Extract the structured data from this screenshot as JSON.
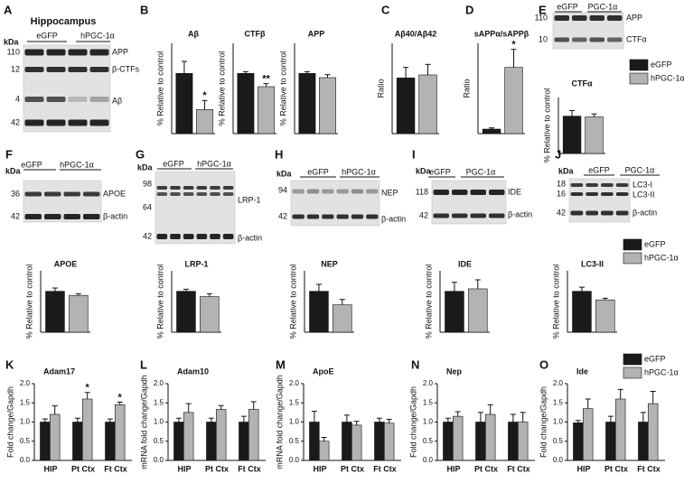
{
  "blots": [
    {
      "panel": "A",
      "title": "Hippocampus",
      "unit": "kDa",
      "lanes": [
        "eGFP",
        "hPGC-1α"
      ],
      "markers": [
        "110",
        "12",
        "4",
        "42"
      ],
      "labels": [
        "APP",
        "β-CTFs",
        "Aβ"
      ]
    },
    {
      "panel": "E",
      "lanes": [
        "eGFP",
        "PGC-1α"
      ],
      "markers": [
        "110",
        "10"
      ],
      "labels": [
        "APP",
        "CTFα"
      ]
    },
    {
      "panel": "F",
      "unit": "kDa",
      "lanes": [
        "eGFP",
        "hPGC-1α"
      ],
      "markers": [
        "36",
        "42"
      ],
      "labels": [
        "APOE",
        "β-actin"
      ]
    },
    {
      "panel": "G",
      "unit": "kDa",
      "lanes": [
        "eGFP",
        "hPGC-1α"
      ],
      "markers": [
        "98",
        "64",
        "42"
      ],
      "labels": [
        "LRP-1",
        "β-actin"
      ]
    },
    {
      "panel": "H",
      "unit": "kDa",
      "lanes": [
        "eGFP",
        "hPGC-1α"
      ],
      "markers": [
        "94",
        "42"
      ],
      "labels": [
        "NEP",
        "β-actin"
      ]
    },
    {
      "panel": "I",
      "unit": "kDa",
      "lanes": [
        "eGFP",
        "PGC-1α"
      ],
      "markers": [
        "118",
        "42"
      ],
      "labels": [
        "IDE",
        "β-actin"
      ]
    },
    {
      "panel": "J",
      "unit": "kDa",
      "lanes": [
        "eGFP",
        "PGC-1α"
      ],
      "markers": [
        "18",
        "16",
        "42"
      ],
      "labels": [
        "LC3-I",
        "LC3-II",
        "β-actin"
      ]
    }
  ],
  "chart_data": [
    {
      "type": "bar",
      "panel": "B",
      "title": "Aβ",
      "y_label": "% Relative to control",
      "ylim": [
        0,
        150
      ],
      "legend": false,
      "series": [
        {
          "name": "eGFP",
          "color": "#1a1a1a",
          "values": [
            100
          ],
          "errors": [
            20
          ]
        },
        {
          "name": "hPGC-1α",
          "color": "#b3b3b3",
          "values": [
            40
          ],
          "errors": [
            15
          ],
          "significance": [
            "*"
          ]
        }
      ]
    },
    {
      "type": "bar",
      "title": "CTFβ",
      "y_label": "% Relative to control",
      "ylim": [
        0,
        150
      ],
      "legend": false,
      "series": [
        {
          "name": "eGFP",
          "color": "#1a1a1a",
          "values": [
            100
          ],
          "errors": [
            3
          ]
        },
        {
          "name": "hPGC-1α",
          "color": "#b3b3b3",
          "values": [
            78
          ],
          "errors": [
            5
          ],
          "significance": [
            "**"
          ]
        }
      ]
    },
    {
      "type": "bar",
      "title": "APP",
      "y_label": "% Relative to control",
      "ylim": [
        0,
        150
      ],
      "legend": false,
      "series": [
        {
          "name": "eGFP",
          "color": "#1a1a1a",
          "values": [
            100
          ],
          "errors": [
            3
          ]
        },
        {
          "name": "hPGC-1α",
          "color": "#b3b3b3",
          "values": [
            93
          ],
          "errors": [
            5
          ]
        }
      ]
    },
    {
      "type": "bar",
      "panel": "C",
      "title": "Aβ40/Aβ42",
      "y_label": "Ratio",
      "ylim": [
        0,
        0.6
      ],
      "legend": false,
      "series": [
        {
          "name": "eGFP",
          "color": "#1a1a1a",
          "values": [
            0.37
          ],
          "errors": [
            0.07
          ]
        },
        {
          "name": "hPGC-1α",
          "color": "#b3b3b3",
          "values": [
            0.39
          ],
          "errors": [
            0.07
          ]
        }
      ]
    },
    {
      "type": "bar",
      "panel": "D",
      "title": "sAPPα/sAPPβ",
      "y_label": "Ratio",
      "ylim": [
        0,
        0.3
      ],
      "legend": false,
      "series": [
        {
          "name": "eGFP",
          "color": "#1a1a1a",
          "values": [
            0.015
          ],
          "errors": [
            0.004
          ]
        },
        {
          "name": "hPGC-1α",
          "color": "#b3b3b3",
          "values": [
            0.22
          ],
          "errors": [
            0.06
          ],
          "significance": [
            "*"
          ]
        }
      ]
    },
    {
      "type": "bar",
      "title": "CTFα",
      "y_label": "% Relative to control",
      "ylim": [
        0,
        150
      ],
      "legend": true,
      "series": [
        {
          "name": "eGFP",
          "color": "#1a1a1a",
          "values": [
            100
          ],
          "errors": [
            15
          ]
        },
        {
          "name": "hPGC-1α",
          "color": "#b3b3b3",
          "values": [
            98
          ],
          "errors": [
            8
          ]
        }
      ]
    },
    {
      "type": "bar",
      "title": "APOE",
      "y_label": "% Relative to control",
      "ylim": [
        0,
        150
      ],
      "legend": false,
      "series": [
        {
          "name": "eGFP",
          "color": "#1a1a1a",
          "values": [
            100
          ],
          "errors": [
            8
          ]
        },
        {
          "name": "hPGC-1α",
          "color": "#b3b3b3",
          "values": [
            90
          ],
          "errors": [
            4
          ]
        }
      ]
    },
    {
      "type": "bar",
      "title": "LRP-1",
      "y_label": "% Relative to control",
      "ylim": [
        0,
        150
      ],
      "legend": false,
      "series": [
        {
          "name": "eGFP",
          "color": "#1a1a1a",
          "values": [
            100
          ],
          "errors": [
            5
          ]
        },
        {
          "name": "hPGC-1α",
          "color": "#b3b3b3",
          "values": [
            87
          ],
          "errors": [
            7
          ]
        }
      ]
    },
    {
      "type": "bar",
      "title": "NEP",
      "y_label": "% Relative to control",
      "ylim": [
        0,
        150
      ],
      "legend": false,
      "series": [
        {
          "name": "eGFP",
          "color": "#1a1a1a",
          "values": [
            100
          ],
          "errors": [
            17
          ]
        },
        {
          "name": "hPGC-1α",
          "color": "#b3b3b3",
          "values": [
            67
          ],
          "errors": [
            13
          ]
        }
      ]
    },
    {
      "type": "bar",
      "title": "IDE",
      "y_label": "% Relative to control",
      "ylim": [
        0,
        150
      ],
      "legend": false,
      "series": [
        {
          "name": "eGFP",
          "color": "#1a1a1a",
          "values": [
            100
          ],
          "errors": [
            22
          ]
        },
        {
          "name": "hPGC-1α",
          "color": "#b3b3b3",
          "values": [
            106
          ],
          "errors": [
            22
          ]
        }
      ]
    },
    {
      "type": "bar",
      "title": "LC3-II",
      "y_label": "% Relative to control",
      "ylim": [
        0,
        150
      ],
      "legend": true,
      "series": [
        {
          "name": "eGFP",
          "color": "#1a1a1a",
          "values": [
            100
          ],
          "errors": [
            10
          ]
        },
        {
          "name": "hPGC-1α",
          "color": "#b3b3b3",
          "values": [
            79
          ],
          "errors": [
            4
          ]
        }
      ]
    },
    {
      "type": "bar",
      "panel": "K",
      "title": "Adam17",
      "y_label": "Fold change/Gapdh",
      "categories": [
        "HIP",
        "Pt Ctx",
        "Ft Ctx"
      ],
      "ylim": [
        0,
        2
      ],
      "yticks": [
        {
          "value": 0,
          "label": "0.0"
        },
        0.5,
        {
          "value": 1,
          "label": "1.0"
        },
        1.5,
        {
          "value": 2,
          "label": "2.0"
        }
      ],
      "legend": false,
      "series": [
        {
          "name": "eGFP",
          "color": "#1a1a1a",
          "values": [
            1.0,
            1.0,
            1.0
          ],
          "errors": [
            0.08,
            0.1,
            0.08
          ]
        },
        {
          "name": "hPGC-1α",
          "color": "#b3b3b3",
          "values": [
            1.2,
            1.6,
            1.45
          ],
          "errors": [
            0.22,
            0.17,
            0.07
          ],
          "significance": [
            null,
            "*",
            "*"
          ]
        }
      ]
    },
    {
      "type": "bar",
      "panel": "L",
      "title": "Adam10",
      "y_label": "mRNA fold change/Gapdh",
      "categories": [
        "HIP",
        "Pt Ctx",
        "Ft Ctx"
      ],
      "ylim": [
        0,
        2
      ],
      "yticks": [
        {
          "value": 0,
          "label": "0.0"
        },
        0.5,
        {
          "value": 1,
          "label": "1.0"
        },
        1.5,
        {
          "value": 2,
          "label": "2.0"
        }
      ],
      "legend": false,
      "series": [
        {
          "name": "eGFP",
          "color": "#1a1a1a",
          "values": [
            1.0,
            1.0,
            1.0
          ],
          "errors": [
            0.1,
            0.1,
            0.15
          ]
        },
        {
          "name": "hPGC-1α",
          "color": "#b3b3b3",
          "values": [
            1.25,
            1.33,
            1.33
          ],
          "errors": [
            0.23,
            0.1,
            0.2
          ]
        }
      ]
    },
    {
      "type": "bar",
      "panel": "M",
      "title": "ApoE",
      "y_label": "mRNA fold change/Gapdh",
      "categories": [
        "HIP",
        "Pt Ctx",
        "Ft Ctx"
      ],
      "ylim": [
        0,
        2
      ],
      "yticks": [
        {
          "value": 0,
          "label": "0.0"
        },
        0.5,
        {
          "value": 1,
          "label": "1.0"
        },
        1.5,
        {
          "value": 2,
          "label": "2.0"
        }
      ],
      "legend": false,
      "series": [
        {
          "name": "eGFP",
          "color": "#1a1a1a",
          "values": [
            1.0,
            1.0,
            1.0
          ],
          "errors": [
            0.28,
            0.18,
            0.1
          ]
        },
        {
          "name": "hPGC-1α",
          "color": "#b3b3b3",
          "values": [
            0.5,
            0.92,
            0.97
          ],
          "errors": [
            0.1,
            0.1,
            0.1
          ]
        }
      ]
    },
    {
      "type": "bar",
      "panel": "N",
      "title": "Nep",
      "y_label": "Fold change/Gapdh",
      "categories": [
        "HIP",
        "Pt Ctx",
        "Ft Ctx"
      ],
      "ylim": [
        0,
        2
      ],
      "yticks": [
        {
          "value": 0,
          "label": "0.0"
        },
        0.5,
        {
          "value": 1,
          "label": "1.0"
        },
        1.5,
        {
          "value": 2,
          "label": "2.0"
        }
      ],
      "legend": false,
      "series": [
        {
          "name": "eGFP",
          "color": "#1a1a1a",
          "values": [
            1.0,
            1.0,
            1.0
          ],
          "errors": [
            0.1,
            0.25,
            0.2
          ]
        },
        {
          "name": "hPGC-1α",
          "color": "#b3b3b3",
          "values": [
            1.15,
            1.2,
            1.0
          ],
          "errors": [
            0.12,
            0.25,
            0.25
          ]
        }
      ]
    },
    {
      "type": "bar",
      "panel": "O",
      "title": "Ide",
      "y_label": "Fold change/Gapdh",
      "categories": [
        "HIP",
        "Pt Ctx",
        "Ft Ctx"
      ],
      "ylim": [
        0,
        2
      ],
      "yticks": [
        {
          "value": 0,
          "label": "0.0"
        },
        0.5,
        {
          "value": 1,
          "label": "1.0"
        },
        1.5,
        {
          "value": 2,
          "label": "2.0"
        }
      ],
      "legend": true,
      "series": [
        {
          "name": "eGFP",
          "color": "#1a1a1a",
          "values": [
            0.98,
            1.0,
            1.0
          ],
          "errors": [
            0.06,
            0.15,
            0.25
          ]
        },
        {
          "name": "hPGC-1α",
          "color": "#b3b3b3",
          "values": [
            1.35,
            1.6,
            1.48
          ],
          "errors": [
            0.25,
            0.25,
            0.32
          ]
        }
      ]
    }
  ]
}
